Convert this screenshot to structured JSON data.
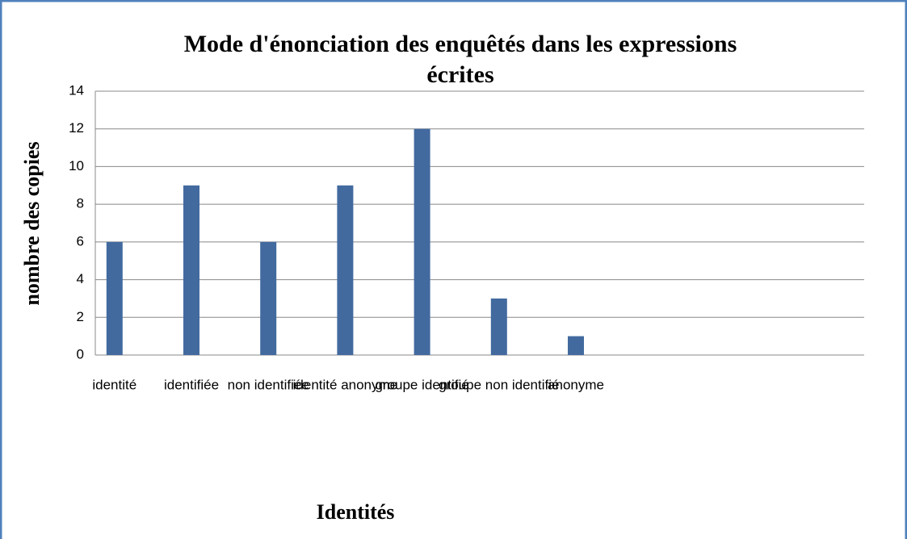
{
  "chart_data": {
    "type": "bar",
    "title": [
      "Mode d'énonciation des enquêtés dans les expressions",
      "écrites"
    ],
    "y_label": "nombre des copies",
    "x_label": "Identités",
    "categories": [
      "identité",
      "identifiée",
      "non identifiée",
      "identité anonyme",
      "groupe identifié",
      "groupe non identifié",
      "anonyme",
      null,
      null,
      null
    ],
    "values": [
      6,
      9,
      6,
      9,
      12,
      3,
      1,
      null,
      null,
      null
    ],
    "color": "#426a9f",
    "ylim": [
      0,
      14
    ],
    "yticks": [
      0,
      2,
      4,
      6,
      8,
      10,
      12,
      14
    ],
    "grid": true
  }
}
